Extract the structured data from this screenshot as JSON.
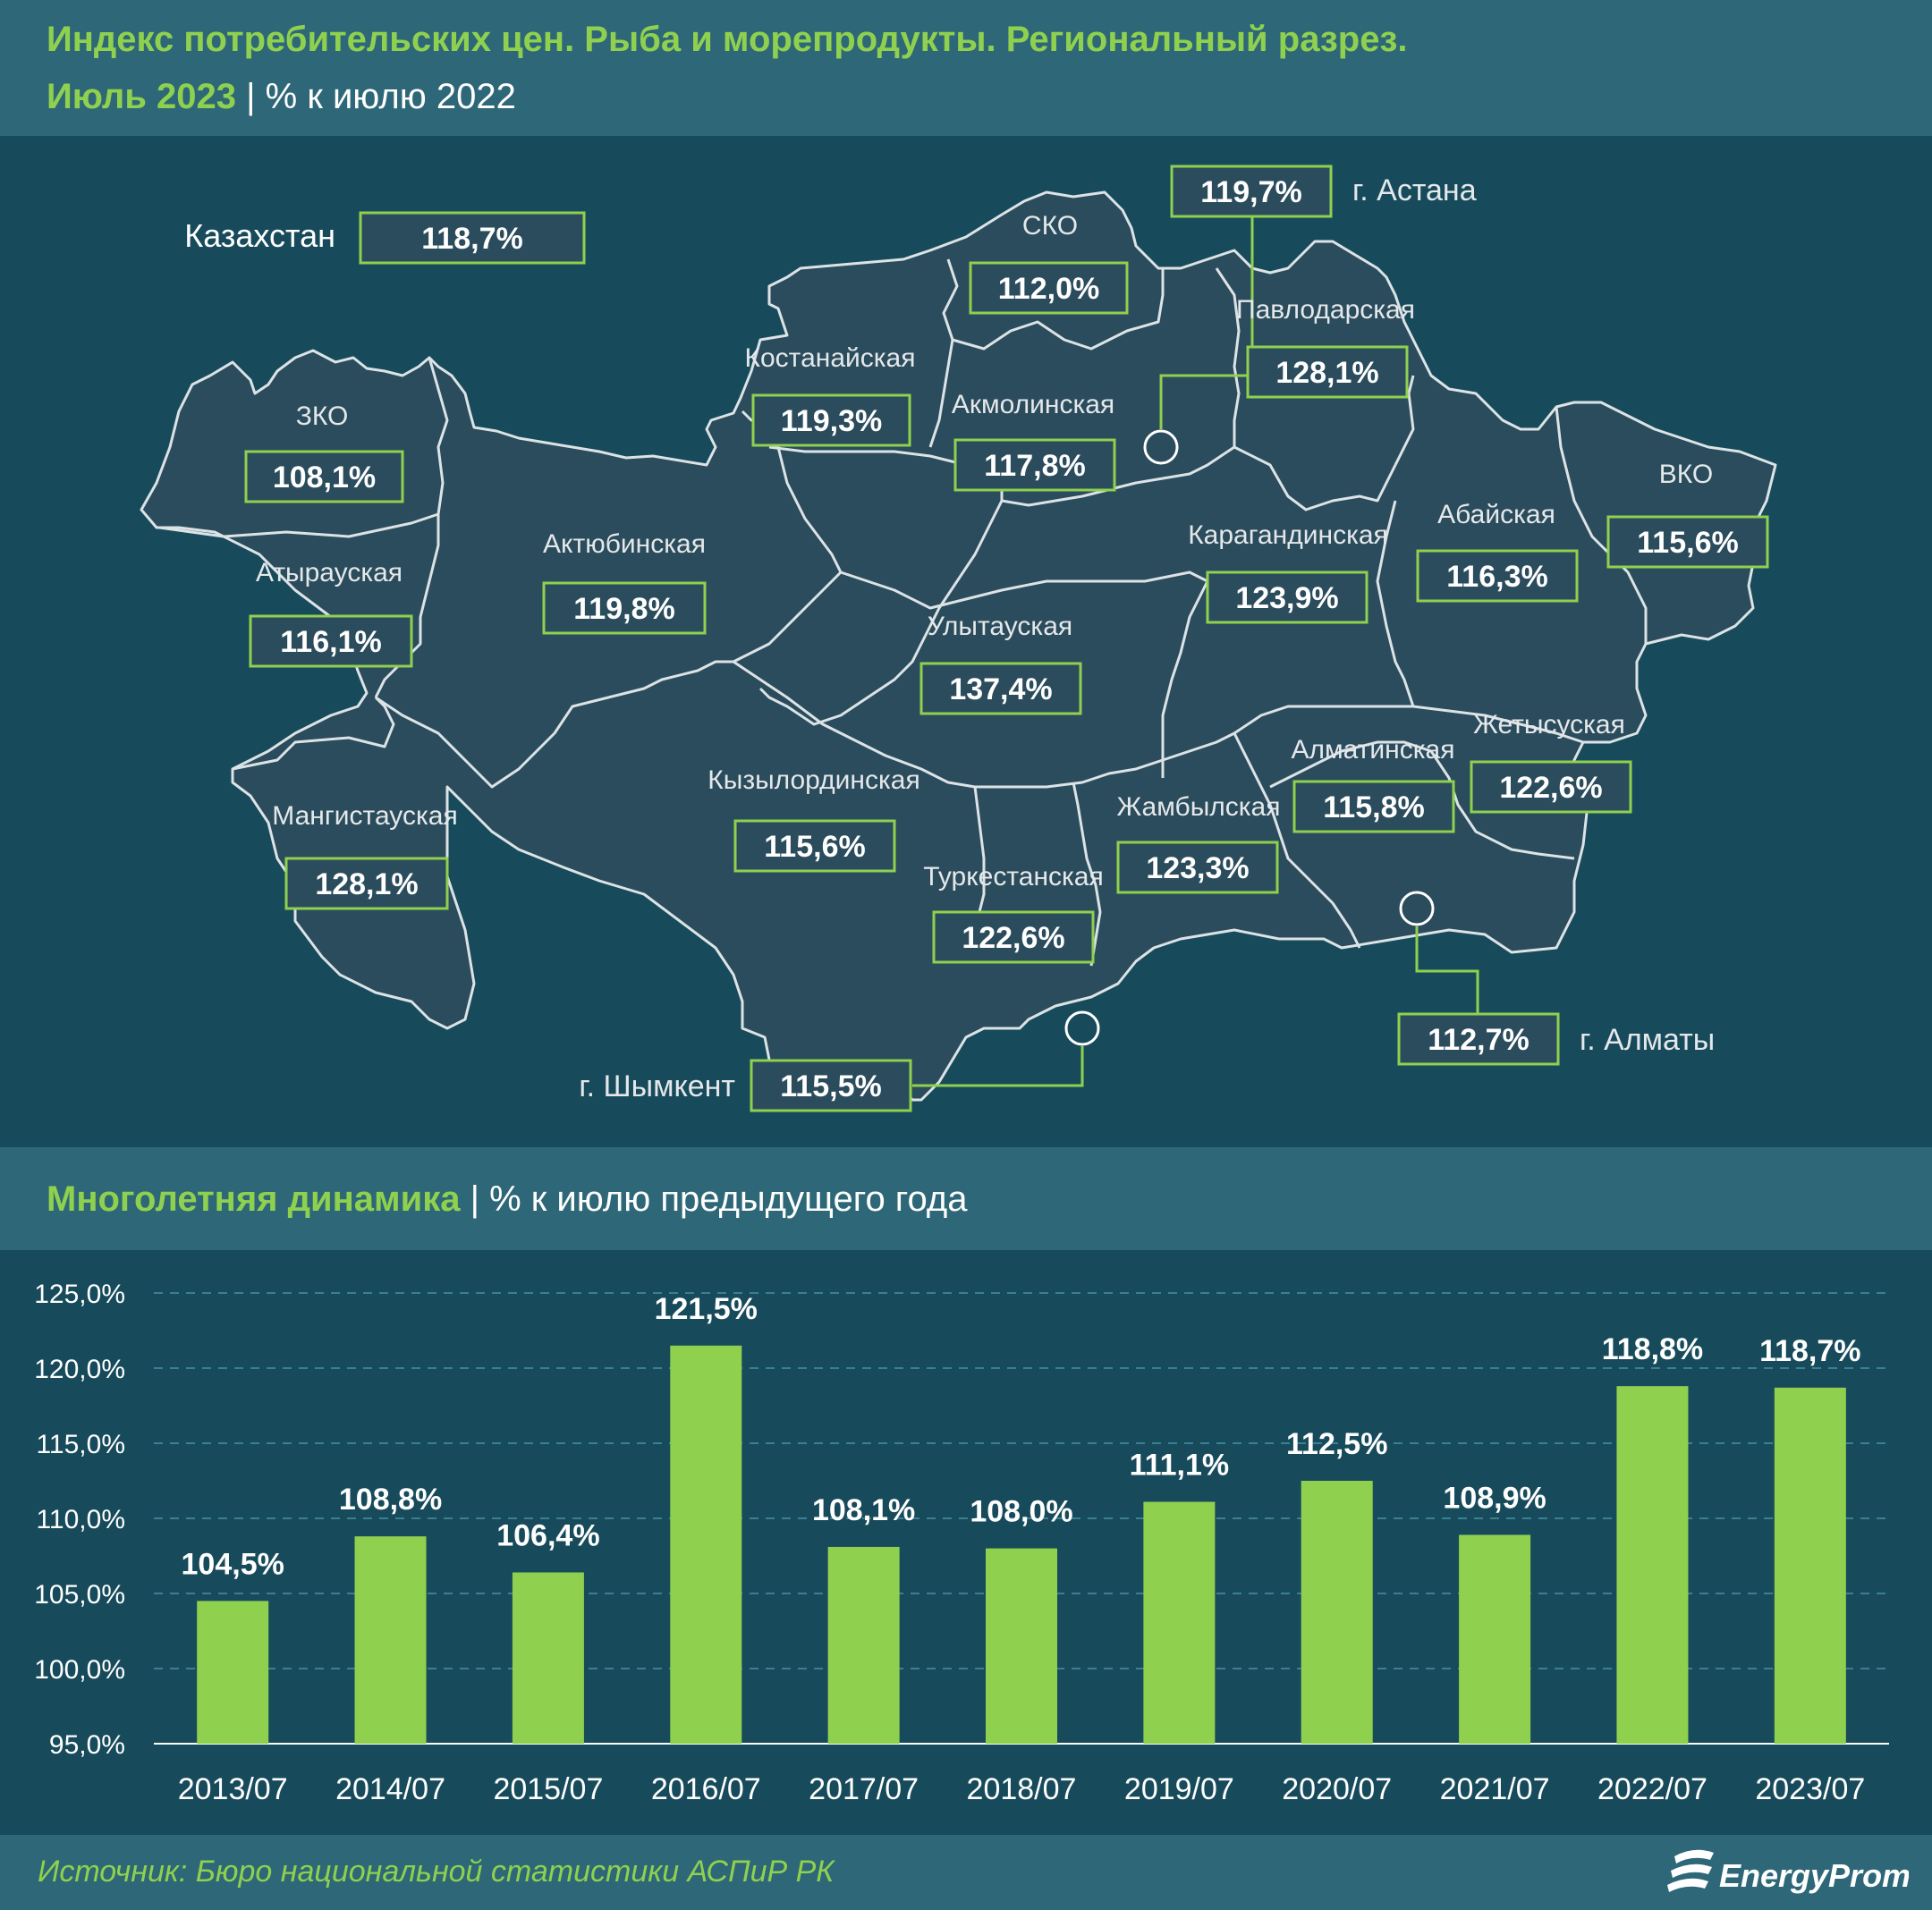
{
  "header": {
    "title_line1": "Индекс потребительских цен. Рыба и морепродукты. Региональный разрез.",
    "period": "Июль 2023",
    "separator": "|",
    "unit": "% к июлю 2022"
  },
  "map": {
    "country": {
      "label": "Казахстан",
      "value": "118,7%"
    },
    "regions": [
      {
        "name": "ЗКО",
        "value": "108,1%"
      },
      {
        "name": "Атырауская",
        "value": "116,1%"
      },
      {
        "name": "Мангистауская",
        "value": "128,1%"
      },
      {
        "name": "Актюбинская",
        "value": "119,8%"
      },
      {
        "name": "Костанайская",
        "value": "119,3%"
      },
      {
        "name": "СКО",
        "value": "112,0%"
      },
      {
        "name": "Акмолинская",
        "value": "117,8%"
      },
      {
        "name": "Павлодарская",
        "value": "128,1%"
      },
      {
        "name": "Карагандинская",
        "value": "123,9%"
      },
      {
        "name": "Улытауская",
        "value": "137,4%"
      },
      {
        "name": "Кызылординская",
        "value": "115,6%"
      },
      {
        "name": "Туркестанская",
        "value": "122,6%"
      },
      {
        "name": "Жамбылская",
        "value": "123,3%"
      },
      {
        "name": "Алматинская",
        "value": "115,8%"
      },
      {
        "name": "Жетысуская",
        "value": "122,6%"
      },
      {
        "name": "Абайская",
        "value": "116,3%"
      },
      {
        "name": "ВКО",
        "value": "115,6%"
      }
    ],
    "cities": [
      {
        "name": "г. Астана",
        "value": "119,7%"
      },
      {
        "name": "г. Алматы",
        "value": "112,7%"
      },
      {
        "name": "г. Шымкент",
        "value": "115,5%"
      }
    ]
  },
  "section2": {
    "title": "Многолетняя динамика",
    "separator": "|",
    "unit": "% к июлю предыдущего года"
  },
  "chart_data": {
    "type": "bar",
    "categories": [
      "2013/07",
      "2014/07",
      "2015/07",
      "2016/07",
      "2017/07",
      "2018/07",
      "2019/07",
      "2020/07",
      "2021/07",
      "2022/07",
      "2023/07"
    ],
    "values": [
      104.5,
      108.8,
      106.4,
      121.5,
      108.1,
      108.0,
      111.1,
      112.5,
      108.9,
      118.8,
      118.7
    ],
    "value_labels": [
      "104,5%",
      "108,8%",
      "106,4%",
      "121,5%",
      "108,1%",
      "108,0%",
      "111,1%",
      "112,5%",
      "108,9%",
      "118,8%",
      "118,7%"
    ],
    "ylim": [
      95,
      125
    ],
    "yticks": [
      "95,0%",
      "100,0%",
      "105,0%",
      "110,0%",
      "115,0%",
      "120,0%",
      "125,0%"
    ],
    "grid": true,
    "bar_color": "#8fd14f"
  },
  "footer": {
    "source": "Источник: Бюро национальной статистики АСПиР РК",
    "brand": "EnergyProm"
  },
  "colors": {
    "accent": "#8fd14f",
    "background": "#174b5b",
    "header": "#2e6878",
    "map_region": "#2b4c5c",
    "border": "#dce3e6"
  }
}
